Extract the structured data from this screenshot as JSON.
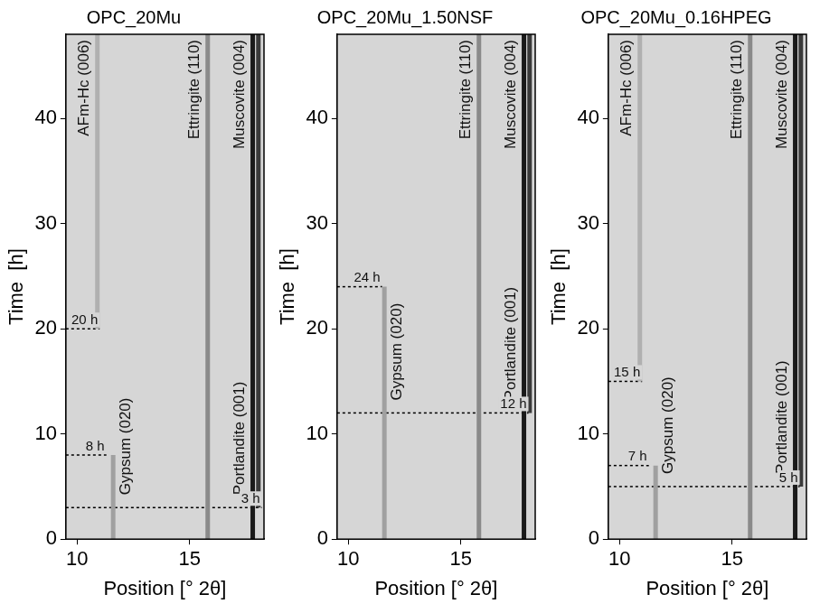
{
  "chart_data": [
    {
      "type": "line",
      "title": "OPC_20Mu",
      "x_label": "Position [° 2θ]",
      "y_label": "Time  [h]",
      "xlim": [
        9.5,
        18.3
      ],
      "xticks": [
        10,
        15
      ],
      "ylim": [
        0,
        48
      ],
      "yticks": [
        0,
        10,
        20,
        30,
        40
      ],
      "grid": false,
      "series": [
        {
          "name": "AFm-Hc (006)",
          "color": "#b0b0b0",
          "x": [
            10.9,
            10.9
          ],
          "values": [
            20,
            48
          ]
        },
        {
          "name": "Gypsum (020)",
          "color": "#a0a0a0",
          "x": [
            11.6,
            11.6
          ],
          "values": [
            0,
            8
          ]
        },
        {
          "name": "Ettringite (110)",
          "color": "#8a8a8a",
          "x": [
            15.8,
            15.8
          ],
          "values": [
            0,
            48
          ]
        },
        {
          "name": "Muscovite (004)",
          "color": "#1a1a1a",
          "x": [
            17.8,
            17.8
          ],
          "values": [
            0,
            48
          ]
        },
        {
          "name": "Portlandite (001)",
          "color": "#3a3a3a",
          "x": [
            18.05,
            18.05
          ],
          "values": [
            3,
            48
          ]
        }
      ],
      "annotations": [
        {
          "text": "3 h",
          "x": [
            9.5,
            18.2
          ],
          "y": 3
        },
        {
          "text": "8 h",
          "x": [
            9.5,
            11.3
          ],
          "y": 8
        },
        {
          "text": "20 h",
          "x": [
            9.5,
            11.0
          ],
          "y": 20
        }
      ]
    },
    {
      "type": "line",
      "title": "OPC_20Mu_1.50NSF",
      "x_label": "Position [° 2θ]",
      "y_label": "Time  [h]",
      "xlim": [
        9.5,
        18.3
      ],
      "xticks": [
        10,
        15
      ],
      "ylim": [
        0,
        48
      ],
      "yticks": [
        0,
        10,
        20,
        30,
        40
      ],
      "grid": false,
      "series": [
        {
          "name": "Gypsum (020)",
          "color": "#a0a0a0",
          "x": [
            11.6,
            11.6
          ],
          "values": [
            0,
            24
          ]
        },
        {
          "name": "Ettringite (110)",
          "color": "#8a8a8a",
          "x": [
            15.8,
            15.8
          ],
          "values": [
            0,
            48
          ]
        },
        {
          "name": "Muscovite (004)",
          "color": "#1a1a1a",
          "x": [
            17.8,
            17.8
          ],
          "values": [
            0,
            48
          ]
        },
        {
          "name": "Portlandite (001)",
          "color": "#3a3a3a",
          "x": [
            18.05,
            18.05
          ],
          "values": [
            12,
            48
          ]
        }
      ],
      "annotations": [
        {
          "text": "12 h",
          "x": [
            9.5,
            18.0
          ],
          "y": 12
        },
        {
          "text": "24 h",
          "x": [
            9.5,
            11.5
          ],
          "y": 24
        }
      ]
    },
    {
      "type": "line",
      "title": "OPC_20Mu_0.16HPEG",
      "x_label": "Position [° 2θ]",
      "y_label": "Time  [h]",
      "xlim": [
        9.5,
        18.3
      ],
      "xticks": [
        10,
        15
      ],
      "ylim": [
        0,
        48
      ],
      "yticks": [
        0,
        10,
        20,
        30,
        40
      ],
      "grid": false,
      "series": [
        {
          "name": "AFm-Hc (006)",
          "color": "#b0b0b0",
          "x": [
            10.9,
            10.9
          ],
          "values": [
            15,
            48
          ]
        },
        {
          "name": "Gypsum (020)",
          "color": "#a0a0a0",
          "x": [
            11.6,
            11.6
          ],
          "values": [
            0,
            7
          ]
        },
        {
          "name": "Ettringite (110)",
          "color": "#8a8a8a",
          "x": [
            15.8,
            15.8
          ],
          "values": [
            0,
            48
          ]
        },
        {
          "name": "Muscovite (004)",
          "color": "#1a1a1a",
          "x": [
            17.8,
            17.8
          ],
          "values": [
            0,
            48
          ]
        },
        {
          "name": "Portlandite (001)",
          "color": "#3a3a3a",
          "x": [
            18.05,
            18.05
          ],
          "values": [
            5,
            48
          ]
        }
      ],
      "annotations": [
        {
          "text": "5 h",
          "x": [
            9.5,
            18.0
          ],
          "y": 5
        },
        {
          "text": "7 h",
          "x": [
            9.5,
            11.3
          ],
          "y": 7
        },
        {
          "text": "15 h",
          "x": [
            9.5,
            11.0
          ],
          "y": 15
        }
      ]
    }
  ]
}
